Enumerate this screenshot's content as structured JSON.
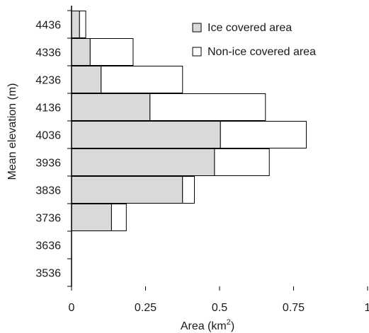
{
  "chart_data": {
    "type": "bar",
    "orientation": "horizontal",
    "stacked": true,
    "categories": [
      "3536",
      "3636",
      "3736",
      "3836",
      "3936",
      "4036",
      "4136",
      "4236",
      "4336",
      "4436"
    ],
    "series": [
      {
        "name": "Ice covered area",
        "values": [
          0,
          0,
          0.135,
          0.375,
          0.483,
          0.503,
          0.265,
          0.1,
          0.063,
          0.027
        ],
        "color": "#d9d9d9"
      },
      {
        "name": "Non-ice covered area",
        "values": [
          0,
          0,
          0.05,
          0.04,
          0.185,
          0.29,
          0.39,
          0.275,
          0.145,
          0.021
        ],
        "color": "#ffffff"
      }
    ],
    "xlabel": "Area (km",
    "xlabel_sup": "2",
    "xlabel_end": ")",
    "ylabel": "Mean elevation (m)",
    "xlim": [
      0,
      1
    ],
    "xticks": [
      "0",
      "0.25",
      "0.5",
      "0.75",
      "1"
    ],
    "xtick_values": [
      0,
      0.25,
      0.5,
      0.75,
      1
    ],
    "grid": false,
    "legend_position": "top-right"
  }
}
